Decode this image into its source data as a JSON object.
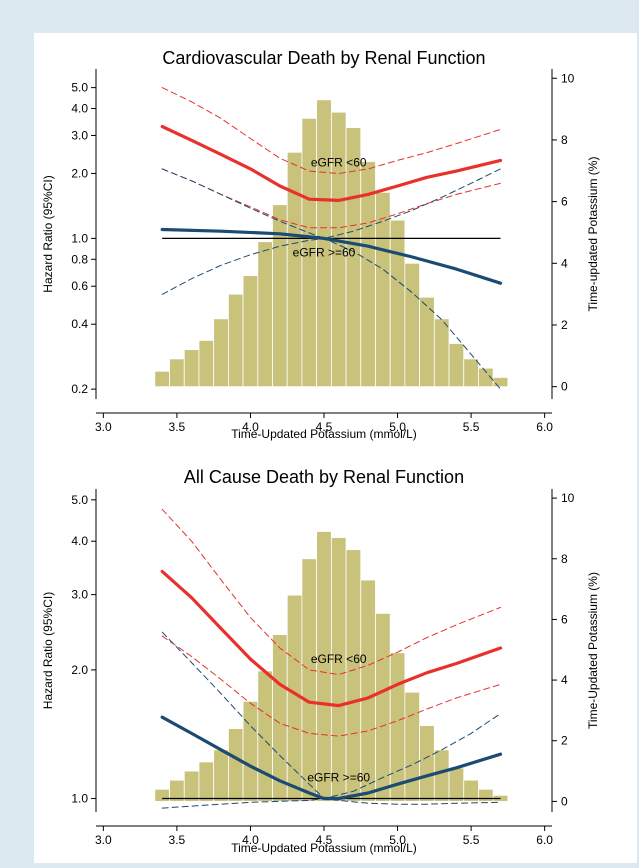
{
  "chart_data": [
    {
      "type": "line",
      "title": "Cardiovascular Death by Renal Function",
      "xlabel": "Time-Updated Potassium (mmol/L)",
      "ylabel": "Hazard Ratio (95%CI)",
      "y2label": "Time-updated Potassium (%)",
      "y_scale": "log",
      "xlim": [
        2.95,
        6.05
      ],
      "ylim": [
        0.18,
        6.1
      ],
      "y2lim": [
        -0.4,
        10.3
      ],
      "xticks": [
        "3.0",
        "3.5",
        "4.0",
        "4.5",
        "5.0",
        "5.5",
        "6.0"
      ],
      "yticks": [
        "0.2",
        "0.4",
        "0.6",
        "0.8",
        "1.0",
        "2.0",
        "3.0",
        "4.0",
        "5.0"
      ],
      "y2ticks": [
        "0",
        "2",
        "4",
        "6",
        "8",
        "10"
      ],
      "colors": {
        "egfr_lt60": "#e8312c",
        "egfr_ge60": "#1b4a72",
        "histogram": "#c9c27b",
        "reference": "#000000"
      },
      "annotations": [
        {
          "text": "eGFR <60",
          "x": 4.6,
          "y": 2.25
        },
        {
          "text": "eGFR >=60",
          "x": 4.5,
          "y": 0.86
        }
      ],
      "histogram": {
        "name": "Time-updated Potassium (%)",
        "bin_width": 0.1,
        "bin_starts": [
          3.35,
          3.45,
          3.55,
          3.65,
          3.75,
          3.85,
          3.95,
          4.05,
          4.15,
          4.25,
          4.35,
          4.45,
          4.55,
          4.65,
          4.75,
          4.85,
          4.95,
          5.05,
          5.15,
          5.25,
          5.35,
          5.45,
          5.55,
          5.65
        ],
        "values": [
          0.5,
          0.9,
          1.2,
          1.5,
          2.2,
          3.0,
          3.6,
          4.7,
          5.9,
          7.6,
          8.7,
          9.3,
          8.9,
          8.4,
          7.3,
          6.3,
          5.4,
          4.0,
          2.9,
          2.2,
          1.4,
          0.9,
          0.6,
          0.3
        ]
      },
      "reference_line": {
        "y": 1.0,
        "x": [
          3.4,
          5.7
        ]
      },
      "series": [
        {
          "key": "egfr_lt60_hr",
          "group": "eGFR <60",
          "style": "solid",
          "x": [
            3.4,
            3.6,
            3.8,
            4.0,
            4.2,
            4.4,
            4.6,
            4.8,
            5.0,
            5.2,
            5.4,
            5.7
          ],
          "values": [
            3.3,
            2.85,
            2.45,
            2.1,
            1.75,
            1.52,
            1.5,
            1.6,
            1.75,
            1.92,
            2.05,
            2.3
          ]
        },
        {
          "key": "egfr_lt60_upper",
          "group": "eGFR <60",
          "style": "dashed",
          "x": [
            3.4,
            3.6,
            3.8,
            4.0,
            4.2,
            4.4,
            4.6,
            4.8,
            5.0,
            5.2,
            5.4,
            5.7
          ],
          "values": [
            5.0,
            4.3,
            3.6,
            2.9,
            2.35,
            2.05,
            2.0,
            2.1,
            2.3,
            2.5,
            2.75,
            3.2
          ]
        },
        {
          "key": "egfr_lt60_lower",
          "group": "eGFR <60",
          "style": "dashed",
          "x": [
            3.4,
            3.6,
            3.8,
            4.0,
            4.2,
            4.4,
            4.6,
            4.8,
            5.0,
            5.2,
            5.4,
            5.7
          ],
          "values": [
            2.1,
            1.85,
            1.6,
            1.4,
            1.22,
            1.12,
            1.12,
            1.18,
            1.3,
            1.45,
            1.6,
            1.8
          ]
        },
        {
          "key": "egfr_ge60_hr",
          "group": "eGFR >=60",
          "style": "solid",
          "x": [
            3.4,
            3.8,
            4.2,
            4.5,
            4.8,
            5.1,
            5.4,
            5.7
          ],
          "values": [
            1.1,
            1.08,
            1.05,
            1.0,
            0.92,
            0.82,
            0.72,
            0.62
          ]
        },
        {
          "key": "egfr_ge60_upper",
          "group": "eGFR >=60",
          "style": "dashed",
          "x": [
            3.4,
            3.6,
            3.8,
            4.0,
            4.2,
            4.4,
            4.5,
            4.7,
            4.9,
            5.1,
            5.3,
            5.5,
            5.7
          ],
          "values": [
            2.1,
            1.85,
            1.6,
            1.38,
            1.2,
            1.06,
            1.0,
            1.08,
            1.2,
            1.35,
            1.55,
            1.8,
            2.1
          ]
        },
        {
          "key": "egfr_ge60_lower",
          "group": "eGFR >=60",
          "style": "dashed",
          "x": [
            3.4,
            3.6,
            3.8,
            4.0,
            4.2,
            4.4,
            4.5,
            4.7,
            4.9,
            5.1,
            5.3,
            5.5,
            5.7
          ],
          "values": [
            0.55,
            0.65,
            0.75,
            0.84,
            0.92,
            0.98,
            1.0,
            0.87,
            0.72,
            0.56,
            0.42,
            0.29,
            0.2
          ]
        }
      ]
    },
    {
      "type": "line",
      "title": "All Cause Death by Renal Function",
      "xlabel": "Time-Updated Potassium (mmol/L)",
      "ylabel": "Hazard Ratio (95%CI)",
      "y2label": "Time-Updated Potassium (%)",
      "y_scale": "log",
      "xlim": [
        2.95,
        6.05
      ],
      "ylim": [
        0.93,
        5.3
      ],
      "y2lim": [
        -0.35,
        10.3
      ],
      "xticks": [
        "3.0",
        "3.5",
        "4.0",
        "4.5",
        "5.0",
        "5.5",
        "6.0"
      ],
      "yticks": [
        "1.0",
        "2.0",
        "3.0",
        "4.0",
        "5.0"
      ],
      "y2ticks": [
        "0",
        "2",
        "4",
        "6",
        "8",
        "10"
      ],
      "colors": {
        "egfr_lt60": "#e8312c",
        "egfr_ge60": "#1b4a72",
        "histogram": "#c9c27b",
        "reference": "#000000"
      },
      "annotations": [
        {
          "text": "eGFR <60",
          "x": 4.6,
          "y": 2.12
        },
        {
          "text": "eGFR >=60",
          "x": 4.6,
          "y": 1.12
        }
      ],
      "histogram": {
        "name": "Time-Updated Potassium (%)",
        "bin_width": 0.1,
        "bin_starts": [
          3.35,
          3.45,
          3.55,
          3.65,
          3.75,
          3.85,
          3.95,
          4.05,
          4.15,
          4.25,
          4.35,
          4.45,
          4.55,
          4.65,
          4.75,
          4.85,
          4.95,
          5.05,
          5.15,
          5.25,
          5.35,
          5.45,
          5.55,
          5.65
        ],
        "values": [
          0.4,
          0.7,
          1.0,
          1.3,
          1.7,
          2.4,
          3.3,
          4.3,
          5.5,
          6.8,
          8.0,
          8.9,
          8.7,
          8.3,
          7.3,
          6.2,
          4.9,
          3.6,
          2.5,
          1.7,
          1.1,
          0.7,
          0.4,
          0.2
        ]
      },
      "reference_line": {
        "y": 1.0,
        "x": [
          3.4,
          5.7
        ]
      },
      "series": [
        {
          "key": "egfr_lt60_hr",
          "group": "eGFR <60",
          "style": "solid",
          "x": [
            3.4,
            3.6,
            3.8,
            4.0,
            4.2,
            4.4,
            4.6,
            4.8,
            5.0,
            5.2,
            5.4,
            5.7
          ],
          "values": [
            3.4,
            2.95,
            2.5,
            2.12,
            1.85,
            1.68,
            1.65,
            1.72,
            1.85,
            1.97,
            2.07,
            2.25
          ]
        },
        {
          "key": "egfr_lt60_upper",
          "group": "eGFR <60",
          "style": "dashed",
          "x": [
            3.4,
            3.6,
            3.8,
            4.0,
            4.2,
            4.4,
            4.6,
            4.8,
            5.0,
            5.2,
            5.4,
            5.7
          ],
          "values": [
            4.75,
            4.0,
            3.25,
            2.65,
            2.25,
            2.0,
            1.95,
            2.05,
            2.2,
            2.38,
            2.55,
            2.8
          ]
        },
        {
          "key": "egfr_lt60_lower",
          "group": "eGFR <60",
          "style": "dashed",
          "x": [
            3.4,
            3.6,
            3.8,
            4.0,
            4.2,
            4.4,
            4.6,
            4.8,
            5.0,
            5.2,
            5.4,
            5.7
          ],
          "values": [
            2.4,
            2.15,
            1.9,
            1.67,
            1.5,
            1.42,
            1.4,
            1.44,
            1.52,
            1.62,
            1.72,
            1.85
          ]
        },
        {
          "key": "egfr_ge60_hr",
          "group": "eGFR >=60",
          "style": "solid",
          "x": [
            3.4,
            3.6,
            3.8,
            4.0,
            4.2,
            4.4,
            4.5,
            4.6,
            4.8,
            5.0,
            5.2,
            5.4,
            5.7
          ],
          "values": [
            1.55,
            1.42,
            1.3,
            1.19,
            1.1,
            1.03,
            1.0,
            1.0,
            1.03,
            1.08,
            1.13,
            1.18,
            1.27
          ]
        },
        {
          "key": "egfr_ge60_upper",
          "group": "eGFR >=60",
          "style": "dashed",
          "x": [
            3.4,
            3.6,
            3.8,
            4.0,
            4.2,
            4.4,
            4.5,
            4.7,
            4.9,
            5.1,
            5.3,
            5.5,
            5.7
          ],
          "values": [
            2.45,
            2.08,
            1.76,
            1.48,
            1.26,
            1.08,
            1.0,
            1.04,
            1.12,
            1.2,
            1.3,
            1.42,
            1.58
          ]
        },
        {
          "key": "egfr_ge60_lower",
          "group": "eGFR >=60",
          "style": "dashed",
          "x": [
            3.4,
            3.6,
            3.8,
            4.0,
            4.2,
            4.4,
            4.5,
            4.6,
            4.8,
            5.0,
            5.2,
            5.4,
            5.7
          ],
          "values": [
            0.95,
            0.96,
            0.97,
            0.98,
            0.985,
            0.99,
            1.0,
            0.99,
            0.975,
            0.97,
            0.97,
            0.975,
            0.98
          ]
        }
      ]
    }
  ]
}
